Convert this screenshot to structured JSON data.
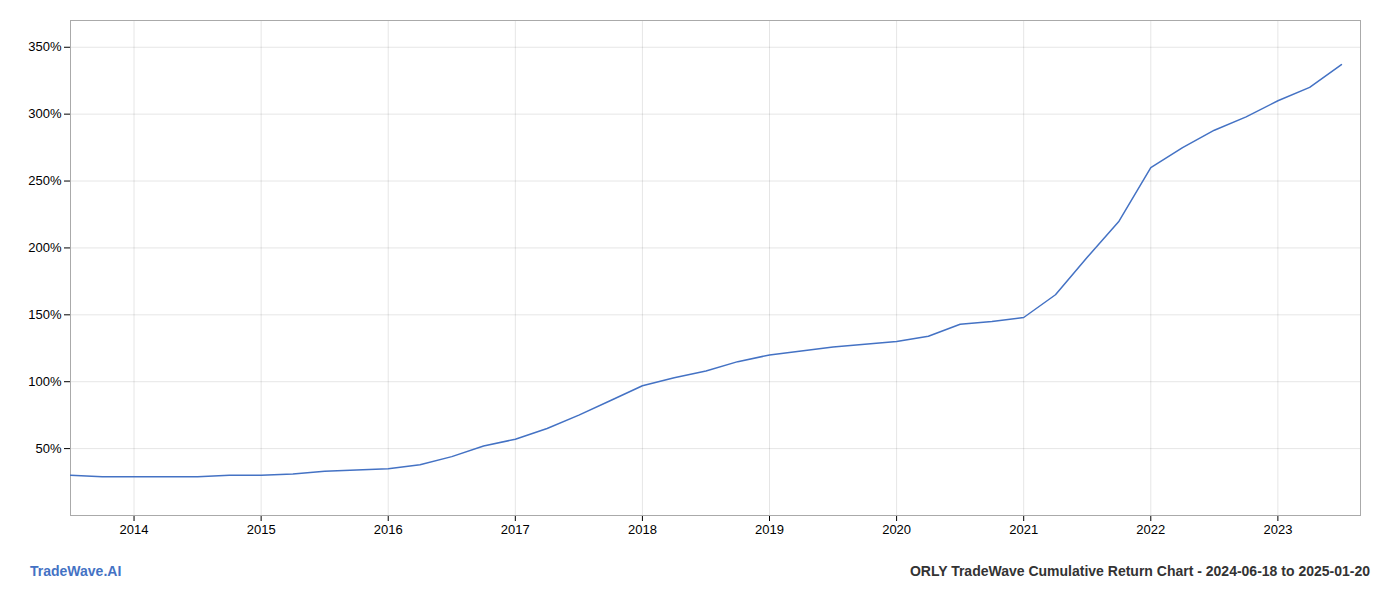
{
  "chart_data": {
    "type": "line",
    "title": "ORLY TradeWave Cumulative Return Chart - 2024-06-18 to 2025-01-20",
    "annotations": [
      "TradeWave.AI"
    ],
    "color": "#4472c4",
    "grid": true,
    "x": [
      2013.5,
      2013.75,
      2014.0,
      2014.25,
      2014.5,
      2014.75,
      2015.0,
      2015.25,
      2015.5,
      2015.75,
      2016.0,
      2016.25,
      2016.5,
      2016.75,
      2017.0,
      2017.25,
      2017.5,
      2017.75,
      2018.0,
      2018.25,
      2018.5,
      2018.75,
      2019.0,
      2019.25,
      2019.5,
      2019.75,
      2020.0,
      2020.25,
      2020.5,
      2020.75,
      2021.0,
      2021.25,
      2021.5,
      2021.75,
      2022.0,
      2022.25,
      2022.5,
      2022.75,
      2023.0,
      2023.25,
      2023.5
    ],
    "values": [
      30,
      29,
      29,
      29,
      29,
      30,
      30,
      31,
      33,
      34,
      35,
      38,
      44,
      52,
      57,
      65,
      75,
      86,
      97,
      103,
      108,
      115,
      120,
      123,
      126,
      128,
      130,
      134,
      143,
      145,
      148,
      165,
      193,
      220,
      260,
      275,
      288,
      298,
      310,
      320,
      337
    ],
    "xlim": [
      2013.5,
      2023.65
    ],
    "xticks": [
      2014,
      2015,
      2016,
      2017,
      2018,
      2019,
      2020,
      2021,
      2022,
      2023
    ],
    "ylim": [
      0,
      370
    ],
    "yticks": [
      {
        "value": 50,
        "label": "50%"
      },
      {
        "value": 100,
        "label": "100%"
      },
      {
        "value": 150,
        "label": "150%"
      },
      {
        "value": 200,
        "label": "200%"
      },
      {
        "value": 250,
        "label": "250%"
      },
      {
        "value": 300,
        "label": "300%"
      },
      {
        "value": 350,
        "label": "350%"
      }
    ]
  }
}
